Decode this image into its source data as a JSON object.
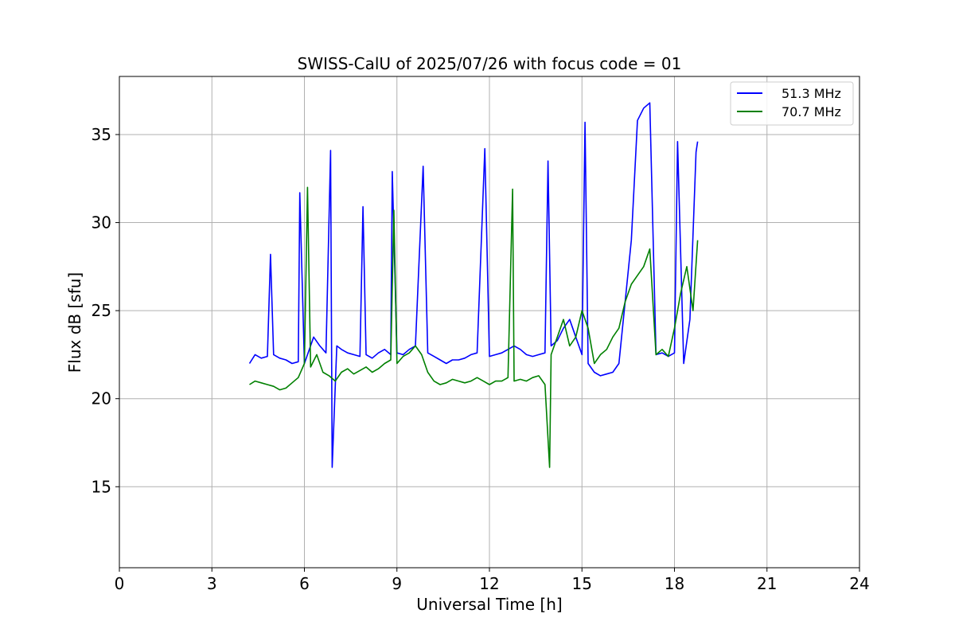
{
  "chart_data": {
    "type": "line",
    "title": "SWISS-CalU of 2025/07/26 with focus code = 01",
    "xlabel": "Universal Time [h]",
    "ylabel": "Flux dB [sfu]",
    "xlim": [
      0,
      24
    ],
    "ylim": [
      10.4,
      38.3
    ],
    "xticks": [
      0,
      3,
      6,
      9,
      12,
      15,
      18,
      21,
      24
    ],
    "yticks": [
      15,
      20,
      25,
      30,
      35
    ],
    "grid": true,
    "legend_position": "top-right",
    "series": [
      {
        "name": "51.3 MHz",
        "color": "#0000ff",
        "x": [
          4.22,
          4.4,
          4.6,
          4.8,
          4.9,
          5.0,
          5.2,
          5.4,
          5.6,
          5.8,
          5.85,
          6.0,
          6.1,
          6.3,
          6.5,
          6.7,
          6.85,
          6.9,
          7.05,
          7.2,
          7.4,
          7.6,
          7.8,
          7.9,
          8.0,
          8.2,
          8.4,
          8.6,
          8.8,
          8.85,
          9.0,
          9.2,
          9.4,
          9.6,
          9.85,
          10.0,
          10.2,
          10.4,
          10.6,
          10.8,
          11.0,
          11.2,
          11.4,
          11.6,
          11.85,
          12.0,
          12.2,
          12.4,
          12.6,
          12.8,
          13.0,
          13.2,
          13.4,
          13.6,
          13.8,
          13.9,
          14.0,
          14.2,
          14.4,
          14.6,
          14.8,
          15.0,
          15.1,
          15.2,
          15.4,
          15.6,
          15.8,
          16.0,
          16.2,
          16.4,
          16.6,
          16.8,
          17.0,
          17.2,
          17.4,
          17.6,
          17.8,
          18.0,
          18.1,
          18.3,
          18.5,
          18.7,
          18.75
        ],
        "y": [
          22.0,
          22.5,
          22.3,
          22.4,
          28.2,
          22.5,
          22.3,
          22.2,
          22.0,
          22.1,
          31.7,
          22.0,
          22.5,
          23.5,
          23.0,
          22.6,
          34.1,
          16.1,
          23.0,
          22.8,
          22.6,
          22.5,
          22.4,
          30.9,
          22.5,
          22.3,
          22.6,
          22.8,
          22.5,
          32.9,
          22.6,
          22.5,
          22.8,
          23.0,
          33.2,
          22.6,
          22.4,
          22.2,
          22.0,
          22.2,
          22.2,
          22.3,
          22.5,
          22.6,
          34.2,
          22.4,
          22.5,
          22.6,
          22.8,
          23.0,
          22.8,
          22.5,
          22.4,
          22.5,
          22.6,
          33.5,
          23.0,
          23.3,
          24.0,
          24.5,
          23.5,
          22.5,
          35.7,
          22.0,
          21.5,
          21.3,
          21.4,
          21.5,
          22.0,
          25.5,
          29.0,
          35.8,
          36.5,
          36.8,
          22.5,
          22.6,
          22.4,
          22.6,
          34.6,
          22.0,
          24.5,
          34.0,
          34.6
        ]
      },
      {
        "name": "70.7 MHz",
        "color": "#008000",
        "x": [
          4.22,
          4.4,
          4.6,
          4.8,
          5.0,
          5.2,
          5.4,
          5.6,
          5.8,
          6.0,
          6.1,
          6.2,
          6.4,
          6.6,
          6.8,
          7.0,
          7.2,
          7.4,
          7.6,
          7.8,
          8.0,
          8.2,
          8.4,
          8.6,
          8.8,
          8.9,
          9.0,
          9.2,
          9.4,
          9.6,
          9.8,
          10.0,
          10.2,
          10.4,
          10.6,
          10.8,
          11.0,
          11.2,
          11.4,
          11.6,
          11.8,
          12.0,
          12.2,
          12.4,
          12.6,
          12.75,
          12.8,
          13.0,
          13.2,
          13.4,
          13.6,
          13.8,
          13.95,
          14.0,
          14.2,
          14.4,
          14.6,
          14.8,
          15.0,
          15.2,
          15.4,
          15.6,
          15.8,
          16.0,
          16.2,
          16.4,
          16.6,
          16.8,
          17.0,
          17.2,
          17.4,
          17.6,
          17.8,
          18.0,
          18.2,
          18.4,
          18.6,
          18.75
        ],
        "y": [
          20.8,
          21.0,
          20.9,
          20.8,
          20.7,
          20.5,
          20.6,
          20.9,
          21.2,
          22.0,
          32.0,
          21.8,
          22.5,
          21.5,
          21.3,
          21.0,
          21.5,
          21.7,
          21.4,
          21.6,
          21.8,
          21.5,
          21.7,
          22.0,
          22.2,
          30.7,
          22.0,
          22.4,
          22.6,
          23.0,
          22.5,
          21.5,
          21.0,
          20.8,
          20.9,
          21.1,
          21.0,
          20.9,
          21.0,
          21.2,
          21.0,
          20.8,
          21.0,
          21.0,
          21.2,
          31.9,
          21.0,
          21.1,
          21.0,
          21.2,
          21.3,
          20.8,
          16.1,
          22.5,
          23.5,
          24.5,
          23.0,
          23.5,
          25.0,
          24.0,
          22.0,
          22.5,
          22.8,
          23.5,
          24.0,
          25.5,
          26.5,
          27.0,
          27.5,
          28.5,
          22.5,
          22.8,
          22.4,
          24.0,
          26.0,
          27.5,
          25.0,
          29.0
        ]
      }
    ]
  }
}
